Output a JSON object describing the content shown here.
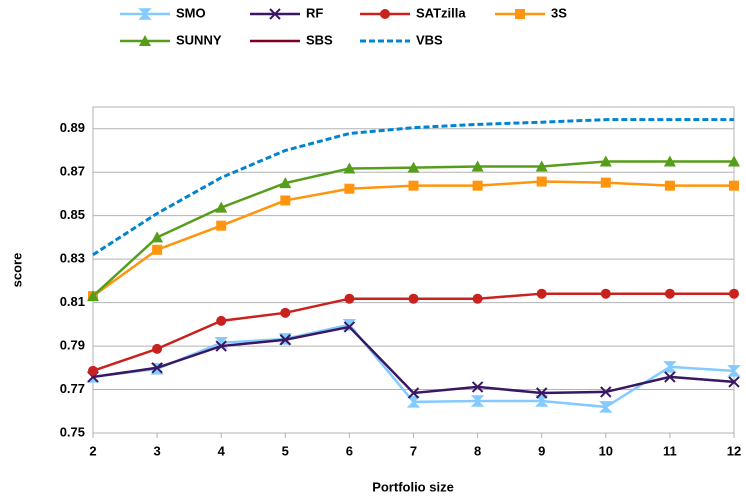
{
  "chart_data": {
    "type": "line",
    "x_label": "Portfolio size",
    "y_label": "score",
    "x": [
      2,
      3,
      4,
      5,
      6,
      7,
      8,
      9,
      10,
      11,
      12
    ],
    "xlim": [
      2,
      12
    ],
    "xticks": [
      2,
      3,
      4,
      5,
      6,
      7,
      8,
      9,
      10,
      11,
      12
    ],
    "ylim": [
      0.75,
      0.9
    ],
    "yticks": [
      0.75,
      0.77,
      0.79,
      0.81,
      0.83,
      0.85,
      0.87,
      0.89
    ],
    "grid": true,
    "legend": "top",
    "series": [
      {
        "name": "SMO",
        "color": "#83caff",
        "marker": "hourglass",
        "values": [
          0.7758,
          0.7795,
          0.7915,
          0.7933,
          0.7998,
          0.7643,
          0.7647,
          0.7647,
          0.762,
          0.7804,
          0.7786
        ]
      },
      {
        "name": "RF",
        "color": "#3a1763",
        "marker": "x",
        "values": [
          0.7758,
          0.78,
          0.79,
          0.7929,
          0.7988,
          0.7684,
          0.7712,
          0.7684,
          0.7689,
          0.7758,
          0.7735
        ]
      },
      {
        "name": "SATzilla",
        "color": "#c9211e",
        "marker": "circle",
        "values": [
          0.7786,
          0.7887,
          0.8016,
          0.8053,
          0.8118,
          0.8118,
          0.8118,
          0.8141,
          0.8141,
          0.8141,
          0.8141
        ]
      },
      {
        "name": "3S",
        "color": "#ff950e",
        "marker": "square",
        "values": [
          0.813,
          0.8343,
          0.8454,
          0.857,
          0.8624,
          0.8638,
          0.8638,
          0.8657,
          0.8652,
          0.8638,
          0.8638
        ]
      },
      {
        "name": "SUNNY",
        "color": "#579d1c",
        "marker": "triangle",
        "values": [
          0.813,
          0.84,
          0.8537,
          0.865,
          0.8717,
          0.8721,
          0.8726,
          0.8726,
          0.8749,
          0.8749,
          0.8749
        ]
      },
      {
        "name": "SBS",
        "color": "#7e0021",
        "marker": "none",
        "values": [
          null,
          null,
          null,
          null,
          null,
          null,
          null,
          null,
          null,
          null,
          null
        ]
      },
      {
        "name": "VBS",
        "color": "#0084d1",
        "marker": "none",
        "dashed": true,
        "values": [
          0.832,
          0.851,
          0.8675,
          0.88,
          0.8878,
          0.8905,
          0.892,
          0.893,
          0.8942,
          0.8942,
          0.8942
        ]
      }
    ]
  }
}
